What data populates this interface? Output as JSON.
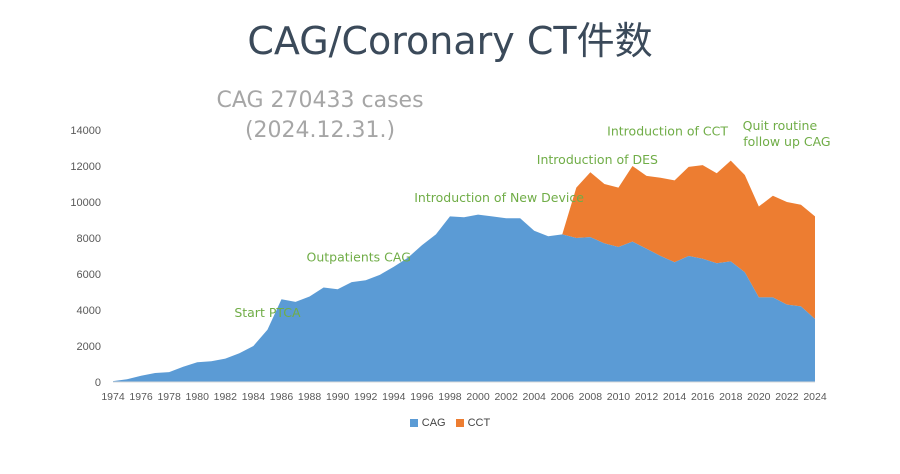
{
  "title": "CAG/Coronary CT件数",
  "subtitle_line1": "CAG  270433 cases",
  "subtitle_line2": "(2024.12.31.)",
  "colors": {
    "cag": "#5b9bd5",
    "cct": "#ed7d31",
    "annotation": "#70ad47",
    "axis_text": "#595959"
  },
  "chart_data": {
    "type": "area",
    "stacked": true,
    "x": [
      1974,
      1975,
      1976,
      1977,
      1978,
      1979,
      1980,
      1981,
      1982,
      1983,
      1984,
      1985,
      1986,
      1987,
      1988,
      1989,
      1990,
      1991,
      1992,
      1993,
      1994,
      1995,
      1996,
      1997,
      1998,
      1999,
      2000,
      2001,
      2002,
      2003,
      2004,
      2005,
      2006,
      2007,
      2008,
      2009,
      2010,
      2011,
      2012,
      2013,
      2014,
      2015,
      2016,
      2017,
      2018,
      2019,
      2020,
      2021,
      2022,
      2023,
      2024
    ],
    "series": [
      {
        "name": "CAG",
        "values": [
          50,
          150,
          350,
          500,
          550,
          850,
          1100,
          1150,
          1300,
          1600,
          2000,
          2900,
          4600,
          4450,
          4750,
          5250,
          5150,
          5550,
          5650,
          5950,
          6400,
          6900,
          7600,
          8200,
          9200,
          9150,
          9300,
          9200,
          9100,
          9100,
          8400,
          8100,
          8200,
          8000,
          8050,
          7700,
          7500,
          7800,
          7400,
          7000,
          6650,
          7000,
          6850,
          6600,
          6700,
          6100,
          4700,
          4700,
          4300,
          4200,
          3500
        ]
      },
      {
        "name": "CCT",
        "values": [
          0,
          0,
          0,
          0,
          0,
          0,
          0,
          0,
          0,
          0,
          0,
          0,
          0,
          0,
          0,
          0,
          0,
          0,
          0,
          0,
          0,
          0,
          0,
          0,
          0,
          0,
          0,
          0,
          0,
          0,
          0,
          0,
          0,
          2800,
          3600,
          3300,
          3300,
          4200,
          4050,
          4350,
          4550,
          4950,
          5200,
          5000,
          5600,
          5400,
          5050,
          5650,
          5700,
          5650,
          5700
        ]
      }
    ],
    "xlabel": "",
    "ylabel": "",
    "ylim": [
      0,
      14000
    ],
    "yticks": [
      0,
      2000,
      4000,
      6000,
      8000,
      10000,
      12000,
      14000
    ],
    "xticks": [
      1974,
      1976,
      1978,
      1980,
      1982,
      1984,
      1986,
      1988,
      1990,
      1992,
      1994,
      1996,
      1998,
      2000,
      2002,
      2004,
      2006,
      2008,
      2010,
      2012,
      2014,
      2016,
      2018,
      2020,
      2022,
      2024
    ],
    "grid": false,
    "legend": "bottom",
    "annotations": [
      {
        "text": "Start PTCA",
        "x": 1985,
        "y": 3600
      },
      {
        "text": "Outpatients CAG",
        "x": 1991.5,
        "y": 6700
      },
      {
        "text": "Introduction of New Device",
        "x": 2001.5,
        "y": 10000
      },
      {
        "text": "Introduction of DES",
        "x": 2008.5,
        "y": 12100
      },
      {
        "text": "Introduction of CCT",
        "x": 2013.5,
        "y": 13700
      },
      {
        "text": "Quit routine",
        "x": 2021.5,
        "y": 14000
      },
      {
        "text": "follow up CAG",
        "x": 2022,
        "y": 13100
      }
    ]
  }
}
